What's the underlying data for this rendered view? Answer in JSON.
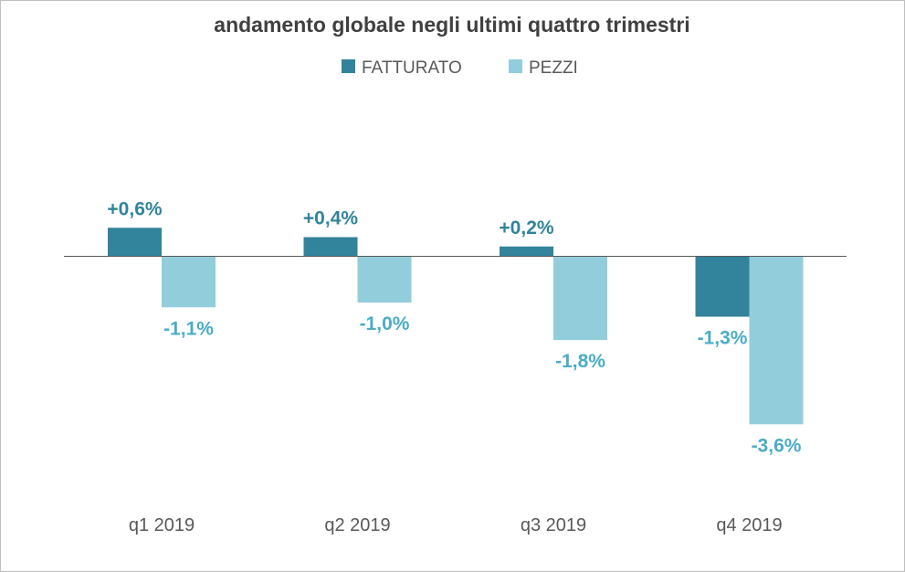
{
  "chart_data": {
    "type": "bar",
    "title": "andamento globale negli ultimi quattro trimestri",
    "categories": [
      "q1 2019",
      "q2 2019",
      "q3 2019",
      "q4 2019"
    ],
    "series": [
      {
        "name": "FATTURATO",
        "color": "#31849b",
        "values": [
          0.6,
          0.4,
          0.2,
          -1.3
        ],
        "labels": [
          "+0,6%",
          "+0,4%",
          "+0,2%",
          "-1,3%"
        ]
      },
      {
        "name": "PEZZI",
        "color": "#92cddc",
        "values": [
          -1.1,
          -1.0,
          -1.8,
          -3.6
        ],
        "labels": [
          "-1,1%",
          "-1,0%",
          "-1,8%",
          "-3,6%"
        ]
      }
    ],
    "label_colors": {
      "positive": "#31849b",
      "negative": "#4bacc6"
    },
    "axis_color": "#595959",
    "legend_position": "top-center",
    "grid": false
  }
}
